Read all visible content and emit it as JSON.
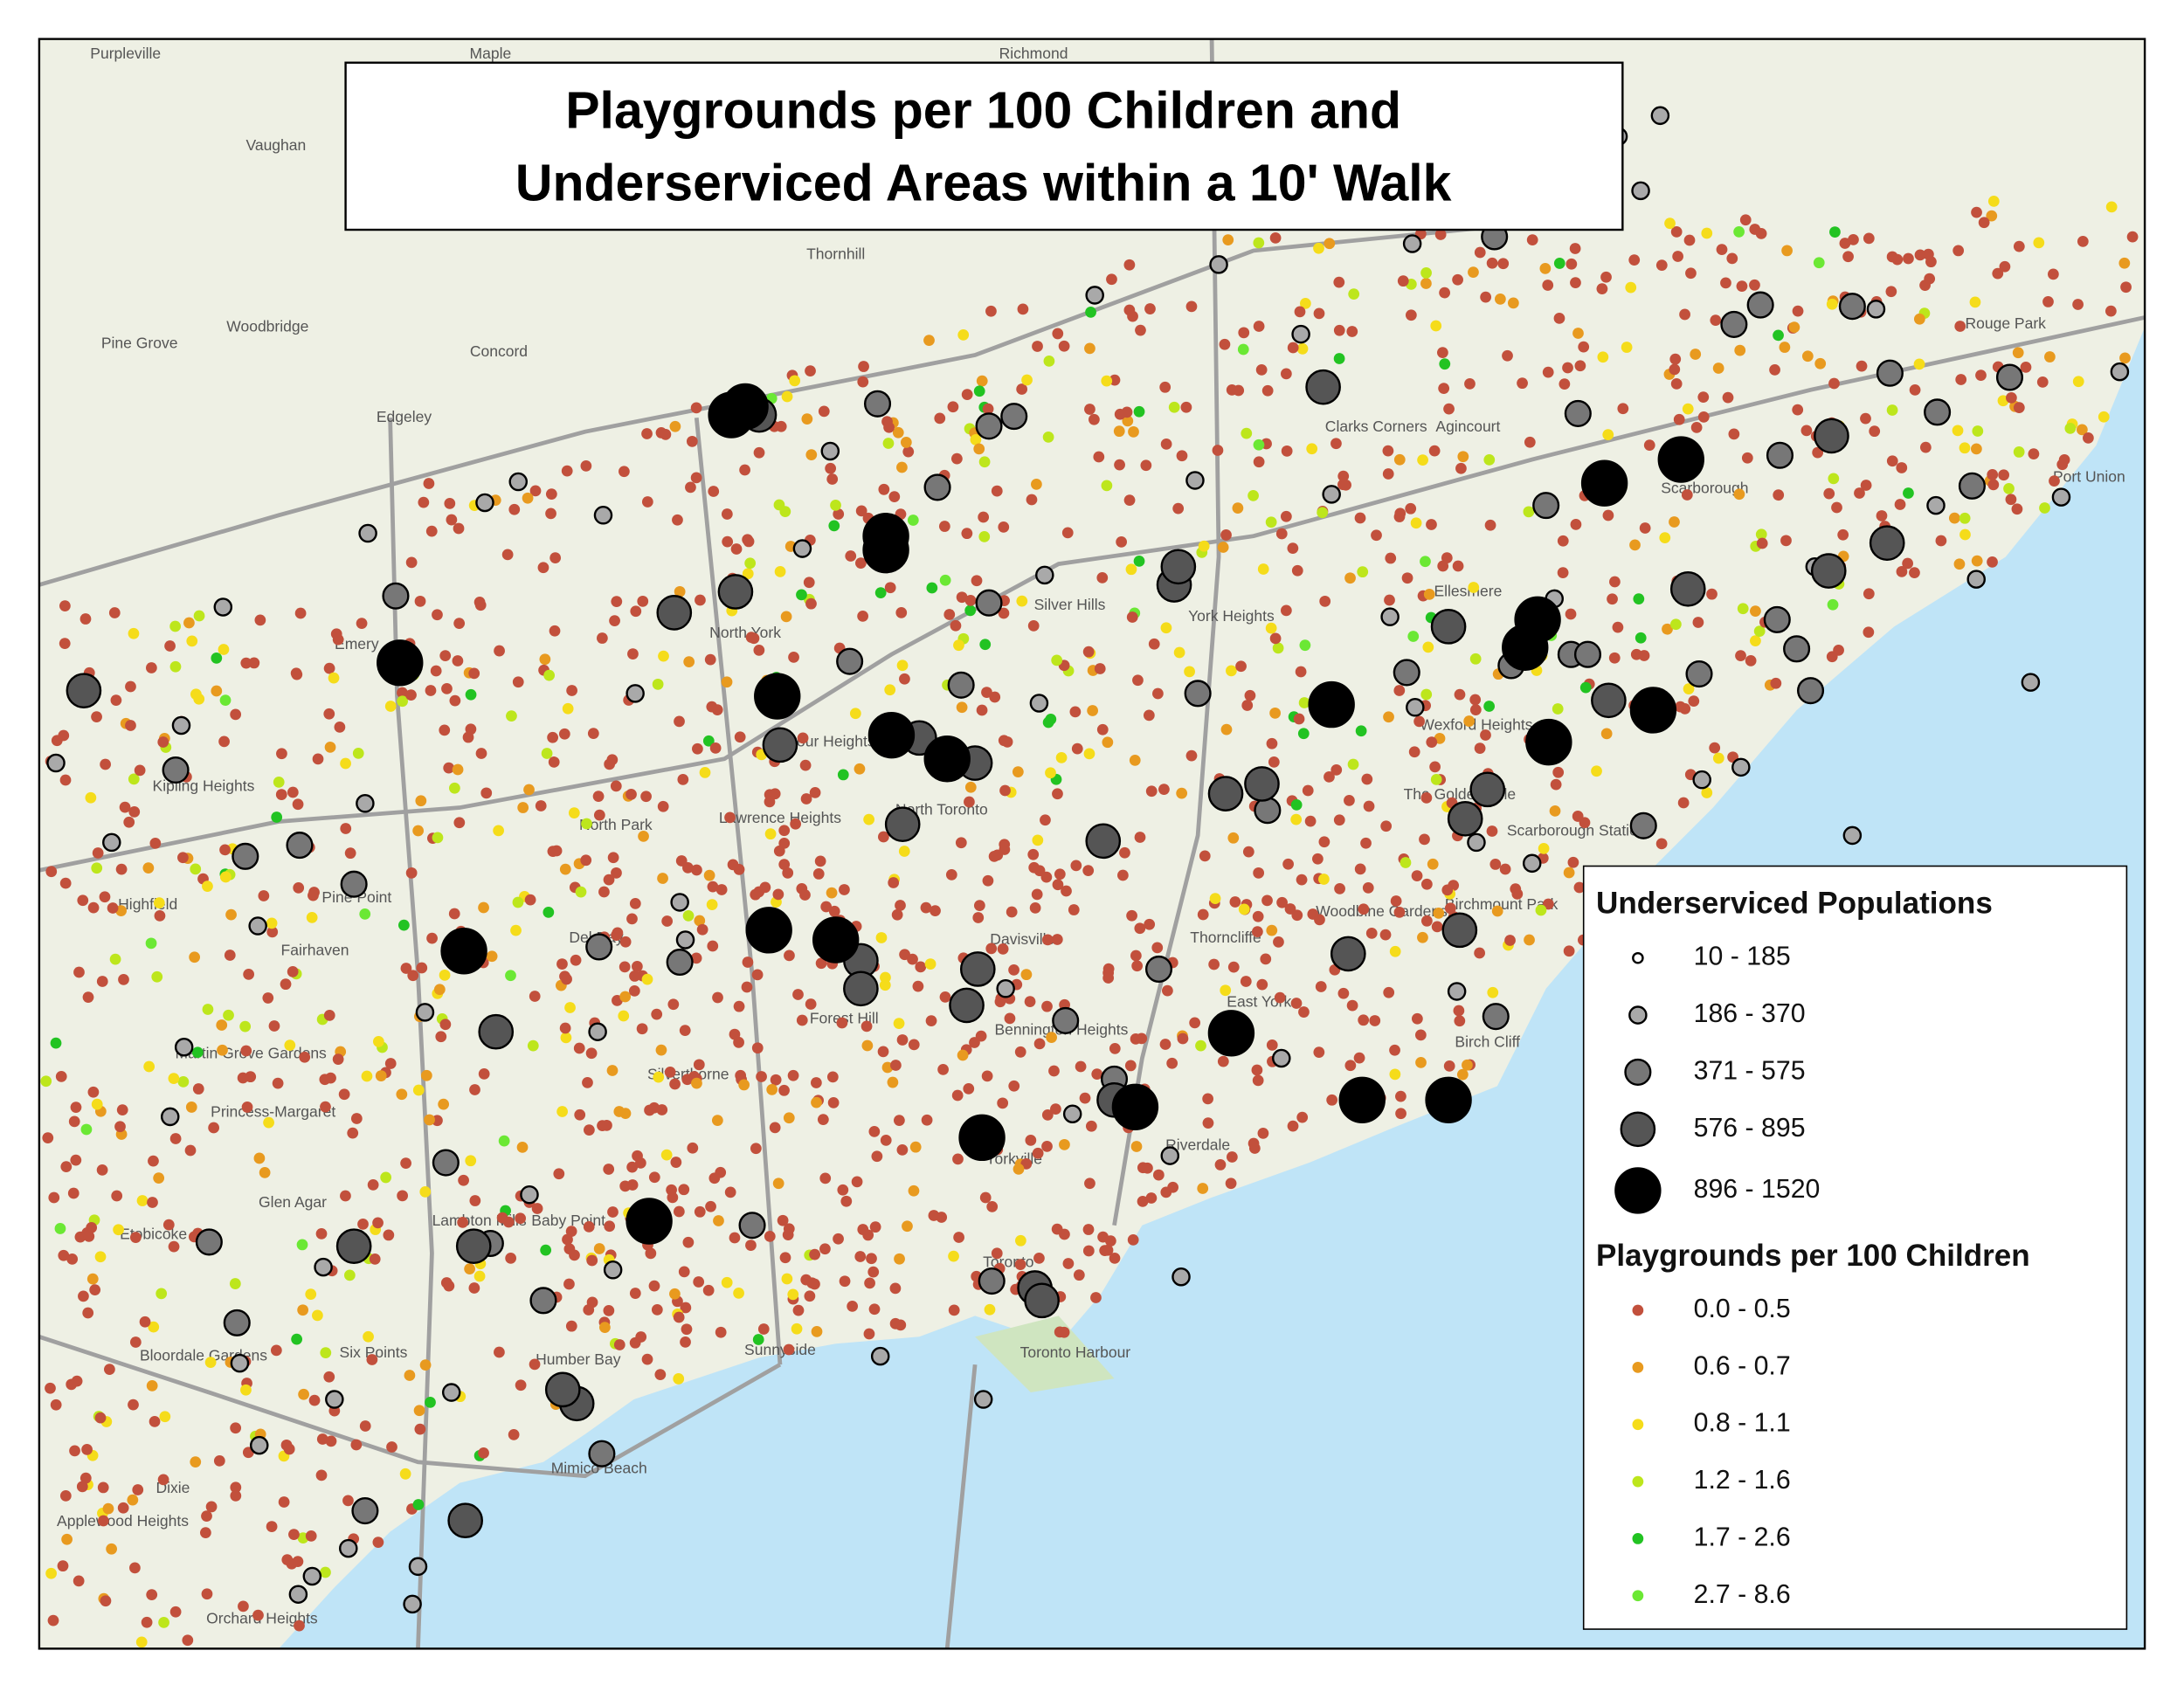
{
  "title": {
    "line1": "Playgrounds per 100 Children and",
    "line2": "Underserviced Areas within a 10' Walk"
  },
  "legend": {
    "populations": {
      "heading": "Underserviced Populations",
      "items": [
        {
          "label": "10 - 185",
          "color": "#ffffff"
        },
        {
          "label": "186 - 370",
          "color": "#a9a9a9"
        },
        {
          "label": "371 - 575",
          "color": "#777777"
        },
        {
          "label": "576 - 895",
          "color": "#555555"
        },
        {
          "label": "896 - 1520",
          "color": "#000000"
        }
      ]
    },
    "playgrounds": {
      "heading": "Playgrounds per 100 Children",
      "items": [
        {
          "label": "0.0 - 0.5",
          "color": "#c2503c"
        },
        {
          "label": "0.6 - 0.7",
          "color": "#e89a1f"
        },
        {
          "label": "0.8 - 1.1",
          "color": "#f5dc1a"
        },
        {
          "label": "1.2 - 1.6",
          "color": "#bde61c"
        },
        {
          "label": "1.7 - 2.6",
          "color": "#22c322"
        },
        {
          "label": "2.7 - 8.6",
          "color": "#6be834"
        }
      ]
    }
  },
  "places": [
    "Purpleville",
    "Maple",
    "Richmond",
    "Vaughan",
    "Pine Grove",
    "Woodbridge",
    "Concord",
    "Edgeley",
    "Thornhill",
    "North York",
    "Emery",
    "Kipling Heights",
    "Highfield",
    "Pine Point",
    "Fairhaven",
    "Martin Grove Gardens",
    "Princess-Margaret",
    "Etobicoke",
    "Glen Agar",
    "Bloordale Gardens",
    "Six Points",
    "Dixie",
    "Applewood Heights",
    "Orchard Heights",
    "Lambton Mills",
    "Baby Point",
    "Humber Bay",
    "Mimico Beach",
    "Sunnyside",
    "Silverthorne",
    "Forest Hill",
    "Davisville",
    "Yorkville",
    "Toronto",
    "Toronto Harbour",
    "Riverdale",
    "East York",
    "Thorncliffe",
    "Bennington Heights",
    "Lawrence Heights",
    "Armour Heights",
    "North Toronto",
    "Silver Hills",
    "York Heights",
    "Clarks Corners",
    "Agincourt",
    "Scarborough",
    "Ellesmere",
    "Wexford Heights",
    "The Golden Mile",
    "Scarborough Station",
    "Birchmount Park",
    "Woodbine Gardens",
    "Birch Cliff",
    "Rouge Park",
    "Port Union",
    "Del Ray",
    "North Park"
  ]
}
